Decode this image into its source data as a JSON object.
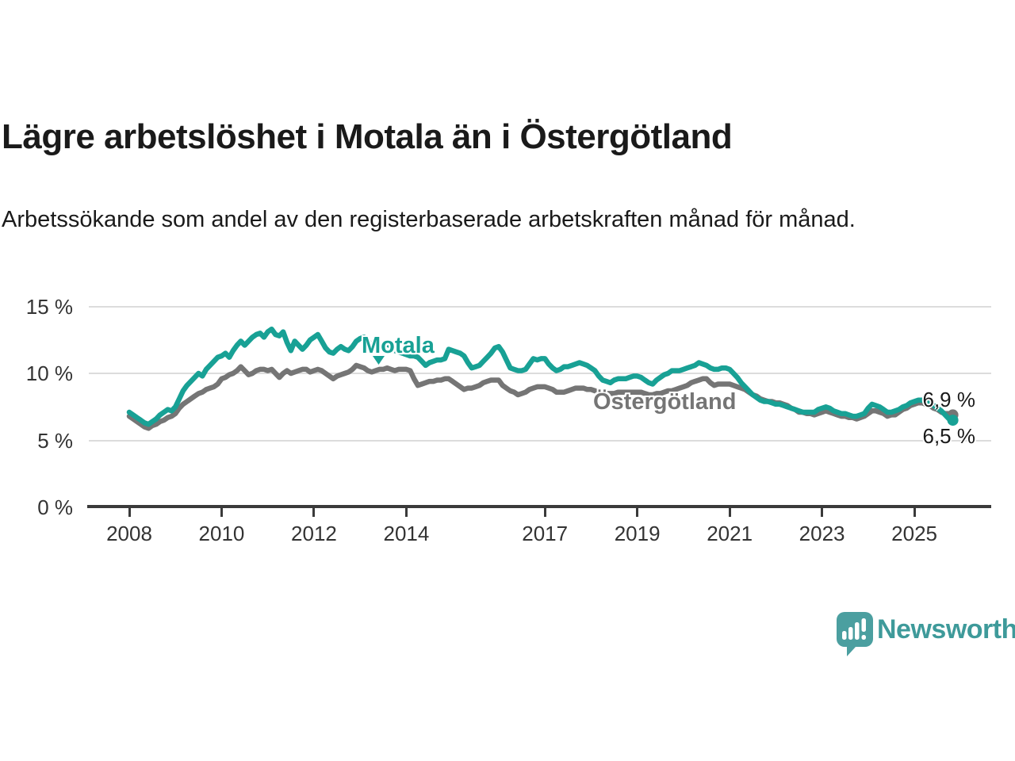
{
  "header": {
    "title": "Lägre arbetslöshet i Motala än i Östergötland",
    "subtitle": "Arbetssökande som andel av den registerbaserade arbetskraften månad för månad."
  },
  "chart": {
    "y_tick_labels": [
      "0 %",
      "5 %",
      "10 %",
      "15 %"
    ],
    "x_tick_labels": [
      "2008",
      "2010",
      "2012",
      "2014",
      "2017",
      "2019",
      "2021",
      "2023",
      "2025"
    ],
    "motala_label": "Motala",
    "ostergotland_label": "Östergötland",
    "end_label_ostergotland": "6,9 %",
    "end_label_motala": "6,5 %"
  },
  "colors": {
    "motala_line": "#18A195",
    "ostergotland_line": "#757575",
    "gridline": "#dcdcdc",
    "axis": "#3a3a3a",
    "brand_teal": "#4B9FA0",
    "brand_text": "#3E9A9A"
  },
  "footer": {
    "brand": "Newsworthy"
  },
  "chart_data": {
    "type": "line",
    "title": "Lägre arbetslöshet i Motala än i Östergötland",
    "subtitle": "Arbetssökande som andel av den registerbaserade arbetskraften månad för månad.",
    "unit": "%",
    "x_axis": {
      "tick_years": [
        2008,
        2010,
        2012,
        2014,
        2017,
        2019,
        2021,
        2023,
        2025
      ],
      "range": [
        2008,
        2025.92
      ]
    },
    "y_axis": {
      "ticks": [
        0,
        5,
        10,
        15
      ],
      "range": [
        0,
        15
      ],
      "grid": true
    },
    "legend_position": "inline-labels",
    "series": [
      {
        "name": "Motala",
        "color": "#18A195",
        "end_value_label": "6,5 %",
        "last_value": 6.5,
        "start_year": 2008,
        "monthly_values": [
          7.1,
          6.9,
          6.7,
          6.5,
          6.3,
          6.2,
          6.4,
          6.6,
          6.9,
          7.1,
          7.3,
          7.2,
          7.5,
          8.1,
          8.7,
          9.1,
          9.4,
          9.7,
          10.0,
          9.8,
          10.3,
          10.6,
          10.9,
          11.2,
          11.3,
          11.5,
          11.2,
          11.7,
          12.1,
          12.4,
          12.1,
          12.4,
          12.7,
          12.9,
          13.0,
          12.7,
          13.1,
          13.3,
          12.9,
          12.8,
          13.1,
          12.3,
          11.7,
          12.4,
          12.1,
          11.8,
          12.1,
          12.5,
          12.7,
          12.9,
          12.4,
          11.9,
          11.6,
          11.5,
          11.8,
          12.0,
          11.8,
          11.7,
          12.0,
          12.4,
          12.6,
          12.7,
          12.4,
          12.1,
          12.0,
          11.9,
          12.1,
          12.2,
          12.0,
          11.7,
          11.6,
          11.5,
          11.4,
          11.3,
          11.3,
          11.2,
          10.9,
          10.6,
          10.8,
          10.9,
          11.0,
          11.0,
          11.1,
          11.8,
          11.7,
          11.6,
          11.5,
          11.3,
          10.8,
          10.4,
          10.5,
          10.6,
          10.9,
          11.2,
          11.5,
          11.9,
          12.0,
          11.6,
          11.0,
          10.4,
          10.3,
          10.2,
          10.2,
          10.3,
          10.7,
          11.1,
          11.0,
          11.1,
          11.1,
          10.7,
          10.4,
          10.2,
          10.3,
          10.5,
          10.5,
          10.6,
          10.7,
          10.8,
          10.7,
          10.6,
          10.4,
          10.2,
          9.8,
          9.5,
          9.4,
          9.3,
          9.5,
          9.6,
          9.6,
          9.6,
          9.7,
          9.8,
          9.8,
          9.7,
          9.5,
          9.3,
          9.2,
          9.5,
          9.7,
          9.9,
          10.0,
          10.2,
          10.2,
          10.2,
          10.3,
          10.4,
          10.5,
          10.6,
          10.8,
          10.7,
          10.6,
          10.4,
          10.3,
          10.3,
          10.4,
          10.4,
          10.3,
          10.0,
          9.7,
          9.3,
          9.0,
          8.7,
          8.4,
          8.2,
          8.0,
          7.9,
          7.9,
          7.8,
          7.7,
          7.7,
          7.6,
          7.5,
          7.4,
          7.3,
          7.2,
          7.1,
          7.1,
          7.1,
          7.1,
          7.3,
          7.4,
          7.5,
          7.4,
          7.2,
          7.1,
          7.0,
          7.0,
          6.9,
          6.8,
          6.8,
          6.9,
          7.0,
          7.4,
          7.7,
          7.6,
          7.5,
          7.3,
          7.1,
          7.1,
          7.2,
          7.3,
          7.5,
          7.6,
          7.8,
          7.9,
          8.0,
          8.0,
          7.9,
          7.8,
          7.6,
          7.4,
          7.2,
          6.9,
          6.6,
          6.5
        ]
      },
      {
        "name": "Östergötland",
        "color": "#757575",
        "end_value_label": "6,9 %",
        "last_value": 6.9,
        "start_year": 2008,
        "monthly_values": [
          6.8,
          6.6,
          6.4,
          6.2,
          6.0,
          5.9,
          6.1,
          6.2,
          6.4,
          6.5,
          6.7,
          6.8,
          7.0,
          7.4,
          7.7,
          7.9,
          8.1,
          8.3,
          8.5,
          8.6,
          8.8,
          8.9,
          9.0,
          9.2,
          9.6,
          9.7,
          9.9,
          10.0,
          10.2,
          10.5,
          10.2,
          9.9,
          10.0,
          10.2,
          10.3,
          10.3,
          10.2,
          10.3,
          10.0,
          9.7,
          10.0,
          10.2,
          10.0,
          10.1,
          10.2,
          10.3,
          10.3,
          10.1,
          10.2,
          10.3,
          10.2,
          10.0,
          9.8,
          9.6,
          9.8,
          9.9,
          10.0,
          10.1,
          10.3,
          10.6,
          10.5,
          10.4,
          10.2,
          10.1,
          10.2,
          10.3,
          10.3,
          10.4,
          10.3,
          10.2,
          10.3,
          10.3,
          10.3,
          10.2,
          9.6,
          9.1,
          9.2,
          9.3,
          9.4,
          9.4,
          9.5,
          9.5,
          9.6,
          9.6,
          9.4,
          9.2,
          9.0,
          8.8,
          8.9,
          8.9,
          9.0,
          9.1,
          9.3,
          9.4,
          9.5,
          9.5,
          9.5,
          9.1,
          8.9,
          8.7,
          8.6,
          8.4,
          8.5,
          8.6,
          8.8,
          8.9,
          9.0,
          9.0,
          9.0,
          8.9,
          8.8,
          8.6,
          8.6,
          8.6,
          8.7,
          8.8,
          8.9,
          8.9,
          8.9,
          8.8,
          8.8,
          8.7,
          8.6,
          8.5,
          8.5,
          8.5,
          8.5,
          8.6,
          8.6,
          8.6,
          8.6,
          8.6,
          8.6,
          8.6,
          8.5,
          8.4,
          8.4,
          8.5,
          8.5,
          8.6,
          8.7,
          8.7,
          8.8,
          8.9,
          9.0,
          9.1,
          9.3,
          9.4,
          9.5,
          9.6,
          9.6,
          9.3,
          9.1,
          9.2,
          9.2,
          9.2,
          9.2,
          9.1,
          9.0,
          8.9,
          8.8,
          8.6,
          8.4,
          8.3,
          8.1,
          8.0,
          7.9,
          7.9,
          7.8,
          7.8,
          7.7,
          7.6,
          7.4,
          7.3,
          7.1,
          7.1,
          7.0,
          7.0,
          6.9,
          7.0,
          7.1,
          7.2,
          7.1,
          7.0,
          6.9,
          6.8,
          6.8,
          6.7,
          6.7,
          6.6,
          6.7,
          6.8,
          7.0,
          7.2,
          7.2,
          7.1,
          7.0,
          6.8,
          6.9,
          6.9,
          7.1,
          7.3,
          7.4,
          7.6,
          7.7,
          7.8,
          7.8,
          7.7,
          7.6,
          7.4,
          7.3,
          7.1,
          7.0,
          7.0,
          6.9
        ]
      }
    ]
  }
}
